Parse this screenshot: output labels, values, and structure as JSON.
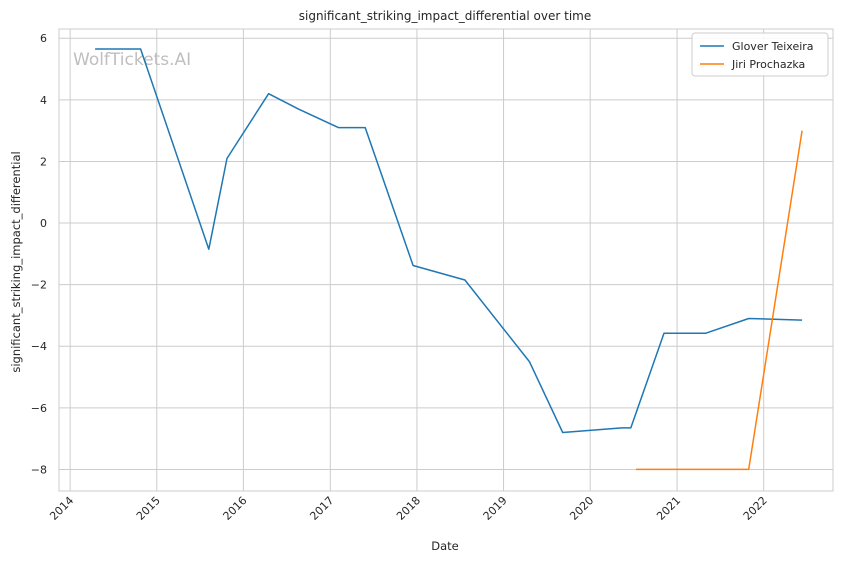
{
  "chart_data": {
    "type": "line",
    "title": "significant_striking_impact_differential over time",
    "xlabel": "Date",
    "ylabel": "significant_striking_impact_differential",
    "watermark": "WolfTickets.AI",
    "x_ticks": [
      "2014",
      "2015",
      "2016",
      "2017",
      "2018",
      "2019",
      "2020",
      "2021",
      "2022"
    ],
    "y_ticks": [
      6,
      4,
      2,
      0,
      -2,
      -4,
      -6,
      -8
    ],
    "y_tick_labels": [
      "6",
      "4",
      "2",
      "0",
      "−2",
      "−4",
      "−6",
      "−8"
    ],
    "xlim": [
      "2013-11-15",
      "2022-10-20"
    ],
    "ylim": [
      -8.7,
      6.3
    ],
    "grid": true,
    "legend_position": "top-right",
    "series": [
      {
        "name": "Glover Teixeira",
        "color": "#1f77b4",
        "points": [
          {
            "x": "2014-04-16",
            "y": 5.65
          },
          {
            "x": "2014-10-25",
            "y": 5.65
          },
          {
            "x": "2015-08-08",
            "y": -0.85
          },
          {
            "x": "2015-10-24",
            "y": 2.1
          },
          {
            "x": "2016-04-16",
            "y": 4.2
          },
          {
            "x": "2016-08-20",
            "y": 3.7
          },
          {
            "x": "2017-02-04",
            "y": 3.1
          },
          {
            "x": "2017-05-28",
            "y": 3.1
          },
          {
            "x": "2017-12-16",
            "y": -1.38
          },
          {
            "x": "2018-07-22",
            "y": -1.85
          },
          {
            "x": "2019-04-20",
            "y": -4.5
          },
          {
            "x": "2019-09-07",
            "y": -6.8
          },
          {
            "x": "2020-05-13",
            "y": -6.65
          },
          {
            "x": "2020-06-20",
            "y": -6.65
          },
          {
            "x": "2020-11-07",
            "y": -3.58
          },
          {
            "x": "2021-05-01",
            "y": -3.58
          },
          {
            "x": "2021-10-30",
            "y": -3.1
          },
          {
            "x": "2022-06-12",
            "y": -3.15
          }
        ]
      },
      {
        "name": "Jiri Prochazka",
        "color": "#ff7f0e",
        "points": [
          {
            "x": "2020-07-12",
            "y": -8.0
          },
          {
            "x": "2021-05-01",
            "y": -8.0
          },
          {
            "x": "2021-10-30",
            "y": -8.0
          },
          {
            "x": "2022-06-12",
            "y": 3.0
          }
        ]
      }
    ]
  }
}
